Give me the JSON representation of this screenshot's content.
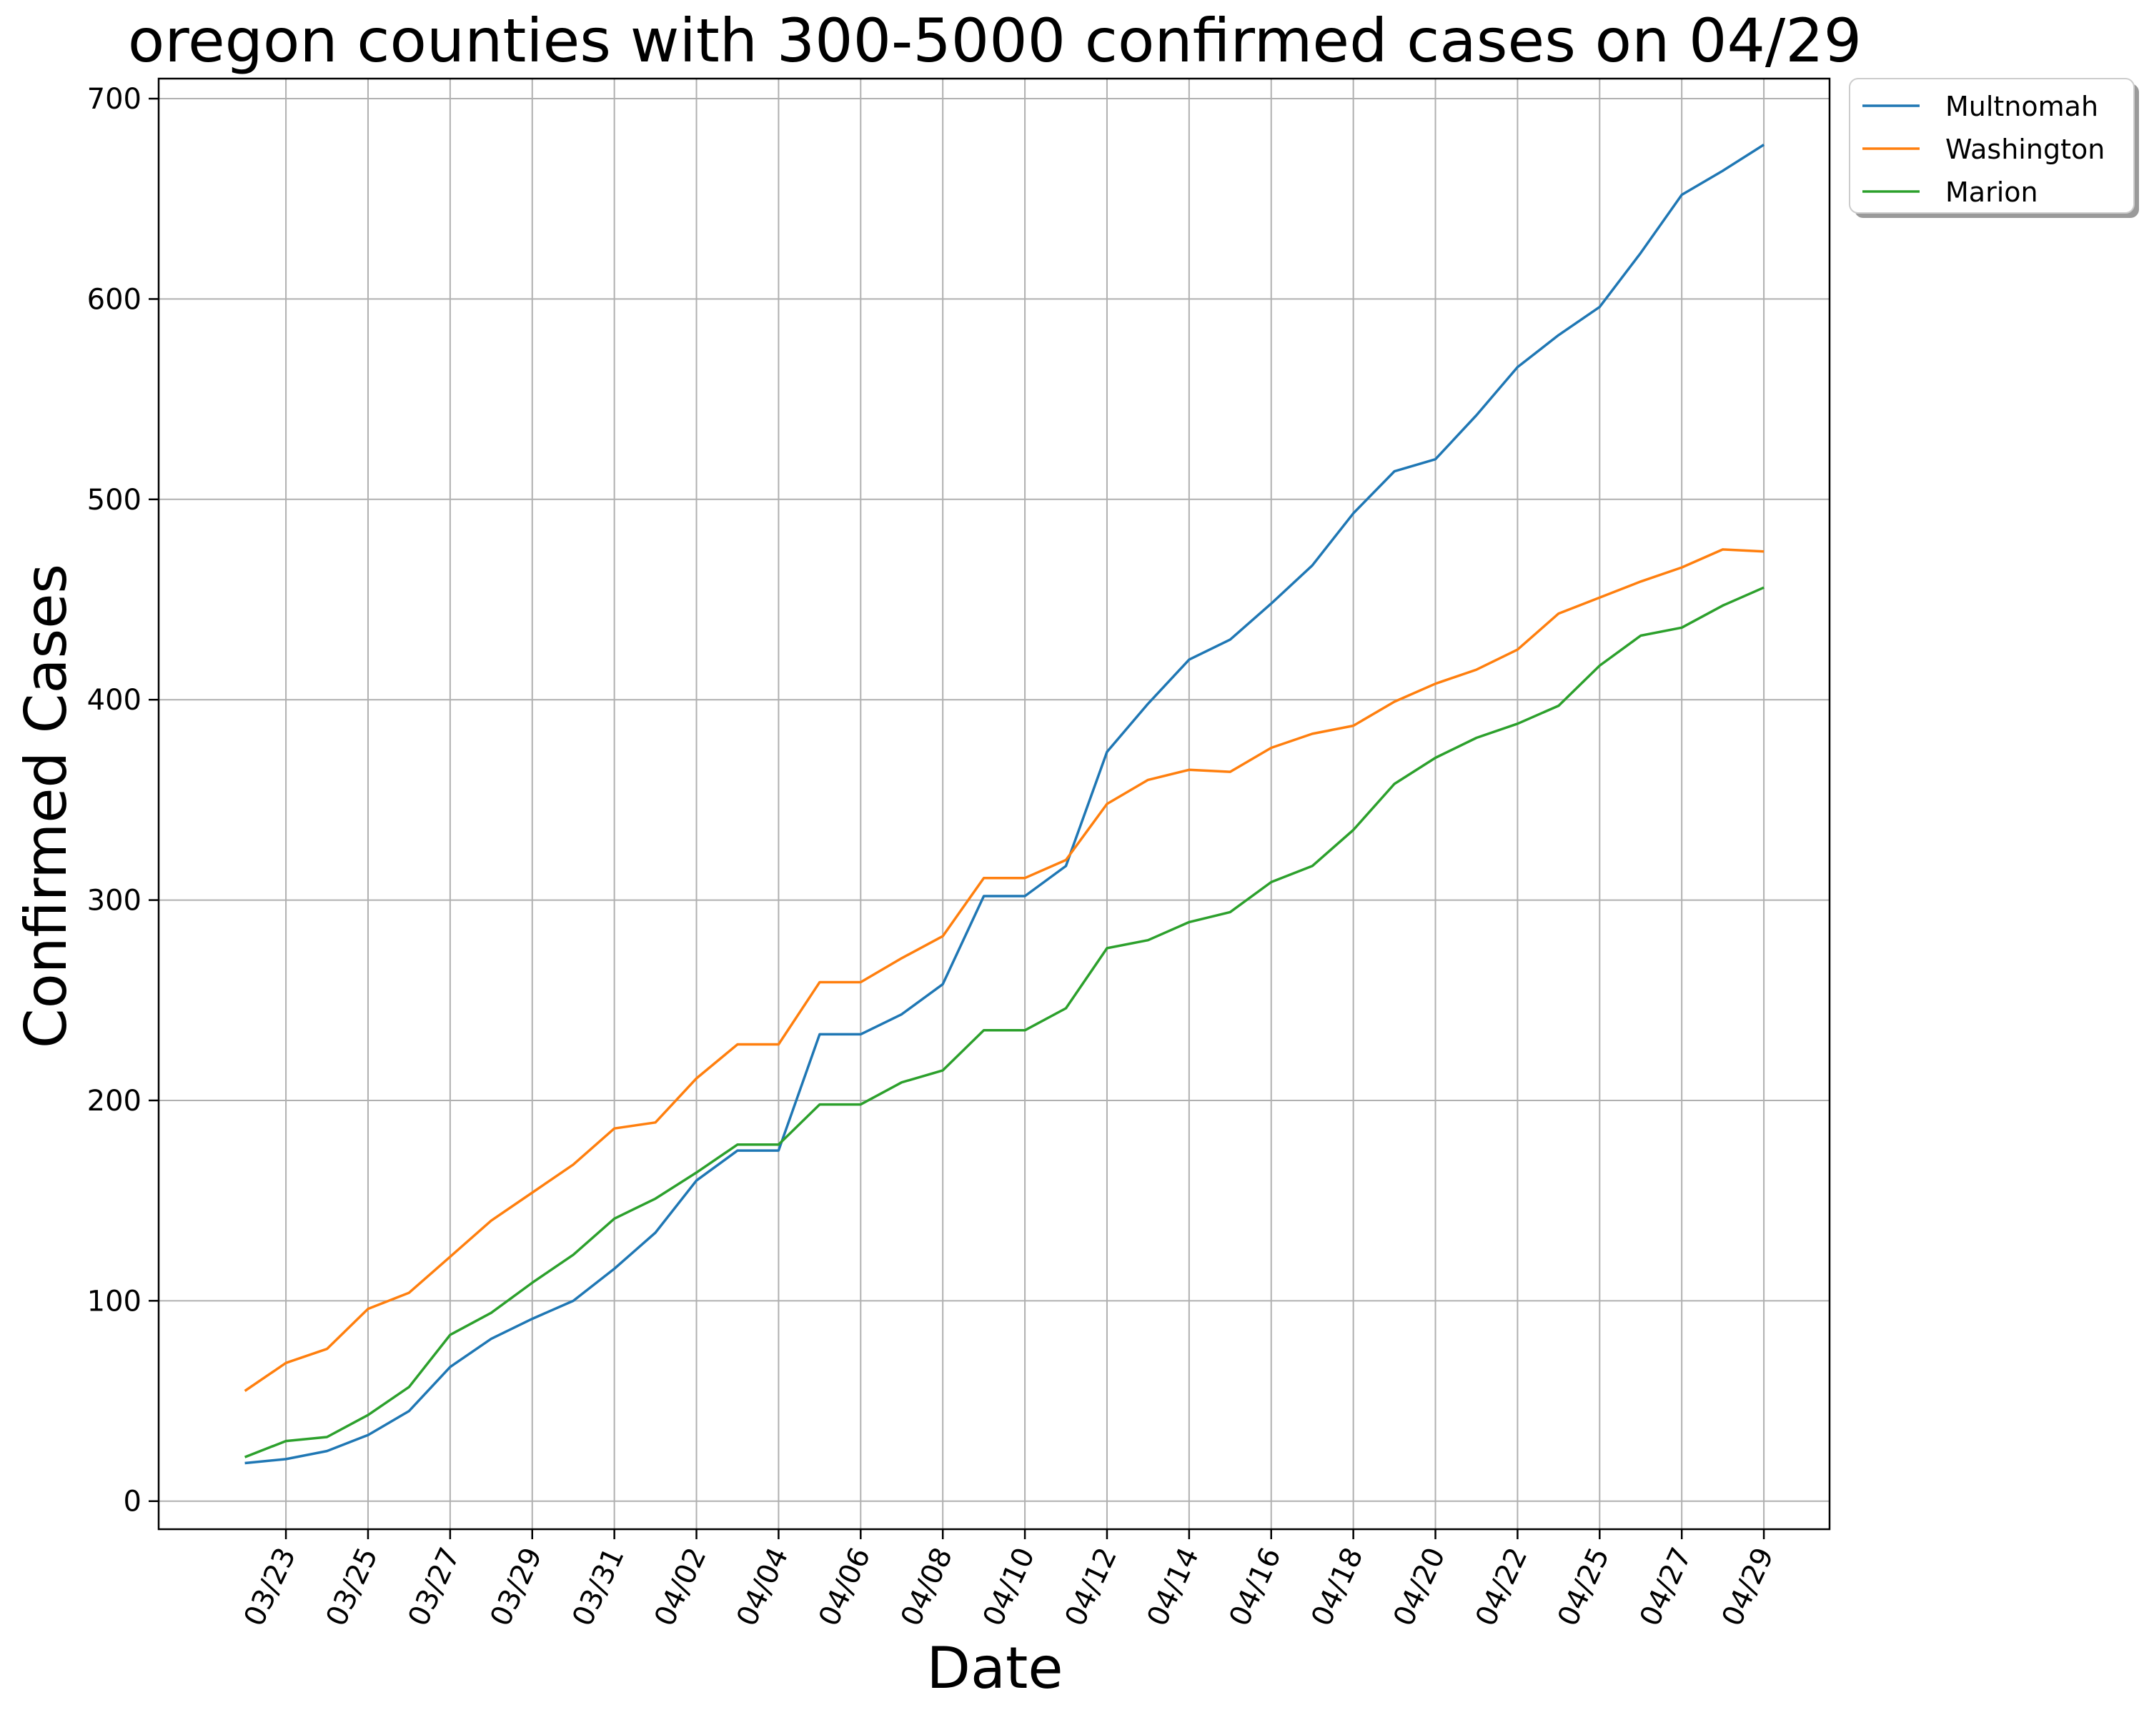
{
  "chart_data": {
    "type": "line",
    "title": "oregon counties with 300-5000 confirmed cases on 04/29",
    "xlabel": "Date",
    "ylabel": "Confirmed Cases",
    "ylim": [
      -14,
      710
    ],
    "yticks": [
      0,
      100,
      200,
      300,
      400,
      500,
      600,
      700
    ],
    "xlim": [
      -2.1,
      38.6
    ],
    "x": [
      "03/22",
      "03/23",
      "03/24",
      "03/25",
      "03/26",
      "03/27",
      "03/28",
      "03/29",
      "03/30",
      "03/31",
      "04/01",
      "04/02",
      "04/03",
      "04/04",
      "04/05",
      "04/06",
      "04/07",
      "04/08",
      "04/09",
      "04/10",
      "04/11",
      "04/12",
      "04/13",
      "04/14",
      "04/15",
      "04/16",
      "04/17",
      "04/18",
      "04/19",
      "04/20",
      "04/21",
      "04/22",
      "04/23",
      "04/25",
      "04/26",
      "04/27",
      "04/28",
      "04/29"
    ],
    "xtick_indices": [
      1,
      3,
      5,
      7,
      9,
      11,
      13,
      15,
      17,
      19,
      21,
      23,
      25,
      27,
      29,
      31,
      33,
      35,
      37
    ],
    "grid": true,
    "legend_position": "outside-top-right",
    "series": [
      {
        "name": "Multnomah",
        "color": "#1f77b4",
        "values": [
          19,
          21,
          25,
          33,
          45,
          67,
          81,
          91,
          100,
          116,
          134,
          160,
          175,
          175,
          233,
          233,
          243,
          258,
          302,
          302,
          317,
          374,
          398,
          420,
          430,
          448,
          467,
          493,
          514,
          520,
          542,
          566,
          582,
          596,
          623,
          652,
          664,
          677
        ]
      },
      {
        "name": "Washington",
        "color": "#ff7f0e",
        "values": [
          55,
          69,
          76,
          96,
          104,
          122,
          140,
          154,
          168,
          186,
          189,
          211,
          228,
          228,
          259,
          259,
          271,
          282,
          311,
          311,
          320,
          348,
          360,
          365,
          364,
          376,
          383,
          387,
          399,
          408,
          415,
          425,
          443,
          451,
          459,
          466,
          475,
          474
        ]
      },
      {
        "name": "Marion",
        "color": "#2ca02c",
        "values": [
          22,
          30,
          32,
          43,
          57,
          83,
          94,
          109,
          123,
          141,
          151,
          164,
          178,
          178,
          198,
          198,
          209,
          215,
          235,
          235,
          246,
          276,
          280,
          289,
          294,
          309,
          317,
          335,
          358,
          371,
          381,
          388,
          397,
          417,
          432,
          436,
          447,
          456
        ]
      }
    ]
  }
}
